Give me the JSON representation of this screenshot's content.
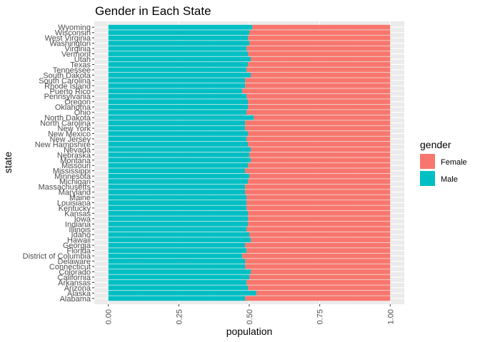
{
  "chart_data": {
    "type": "bar",
    "orientation": "horizontal",
    "stacked": true,
    "title": "Gender in Each State",
    "xlabel": "population",
    "ylabel": "state",
    "xlim": [
      0,
      1
    ],
    "x_ticks": [
      "0.00",
      "0.25",
      "0.50",
      "0.75",
      "1.00"
    ],
    "grid": true,
    "legend": {
      "title": "gender",
      "position": "right",
      "entries": [
        {
          "label": "Female",
          "color": "#F8766D"
        },
        {
          "label": "Male",
          "color": "#00BFC4"
        }
      ]
    },
    "categories": [
      "Alabama",
      "Alaska",
      "Arizona",
      "Arkansas",
      "California",
      "Colorado",
      "Connecticut",
      "Delaware",
      "District of Columbia",
      "Florida",
      "Georgia",
      "Hawaii",
      "Idaho",
      "Illinois",
      "Indiana",
      "Iowa",
      "Kansas",
      "Kentucky",
      "Louisiana",
      "Maine",
      "Maryland",
      "Massachusetts",
      "Michigan",
      "Minnesota",
      "Mississippi",
      "Missouri",
      "Montana",
      "Nebraska",
      "Nevada",
      "New Hampshire",
      "New Jersey",
      "New Mexico",
      "New York",
      "North Carolina",
      "North Dakota",
      "Ohio",
      "Oklahoma",
      "Oregon",
      "Pennsylvania",
      "Puerto Rico",
      "Rhode Island",
      "South Carolina",
      "South Dakota",
      "Tennessee",
      "Texas",
      "Utah",
      "Vermont",
      "Virginia",
      "Washington",
      "West Virginia",
      "Wisconsin",
      "Wyoming"
    ],
    "series": [
      {
        "name": "Male",
        "color": "#00BFC4",
        "values": [
          0.485,
          0.525,
          0.495,
          0.49,
          0.5,
          0.505,
          0.485,
          0.485,
          0.475,
          0.49,
          0.485,
          0.505,
          0.5,
          0.49,
          0.495,
          0.495,
          0.495,
          0.49,
          0.49,
          0.49,
          0.485,
          0.485,
          0.495,
          0.5,
          0.485,
          0.495,
          0.505,
          0.5,
          0.505,
          0.495,
          0.49,
          0.495,
          0.485,
          0.485,
          0.515,
          0.49,
          0.495,
          0.495,
          0.49,
          0.475,
          0.485,
          0.485,
          0.505,
          0.49,
          0.495,
          0.505,
          0.495,
          0.49,
          0.5,
          0.495,
          0.5,
          0.51
        ]
      },
      {
        "name": "Female",
        "color": "#F8766D",
        "values": [
          0.515,
          0.475,
          0.505,
          0.51,
          0.5,
          0.495,
          0.515,
          0.515,
          0.525,
          0.51,
          0.515,
          0.495,
          0.5,
          0.51,
          0.505,
          0.505,
          0.505,
          0.51,
          0.51,
          0.51,
          0.515,
          0.515,
          0.505,
          0.5,
          0.515,
          0.505,
          0.495,
          0.5,
          0.495,
          0.505,
          0.51,
          0.505,
          0.515,
          0.515,
          0.485,
          0.51,
          0.505,
          0.505,
          0.51,
          0.525,
          0.515,
          0.515,
          0.495,
          0.51,
          0.505,
          0.495,
          0.505,
          0.51,
          0.5,
          0.505,
          0.5,
          0.49
        ]
      }
    ]
  }
}
